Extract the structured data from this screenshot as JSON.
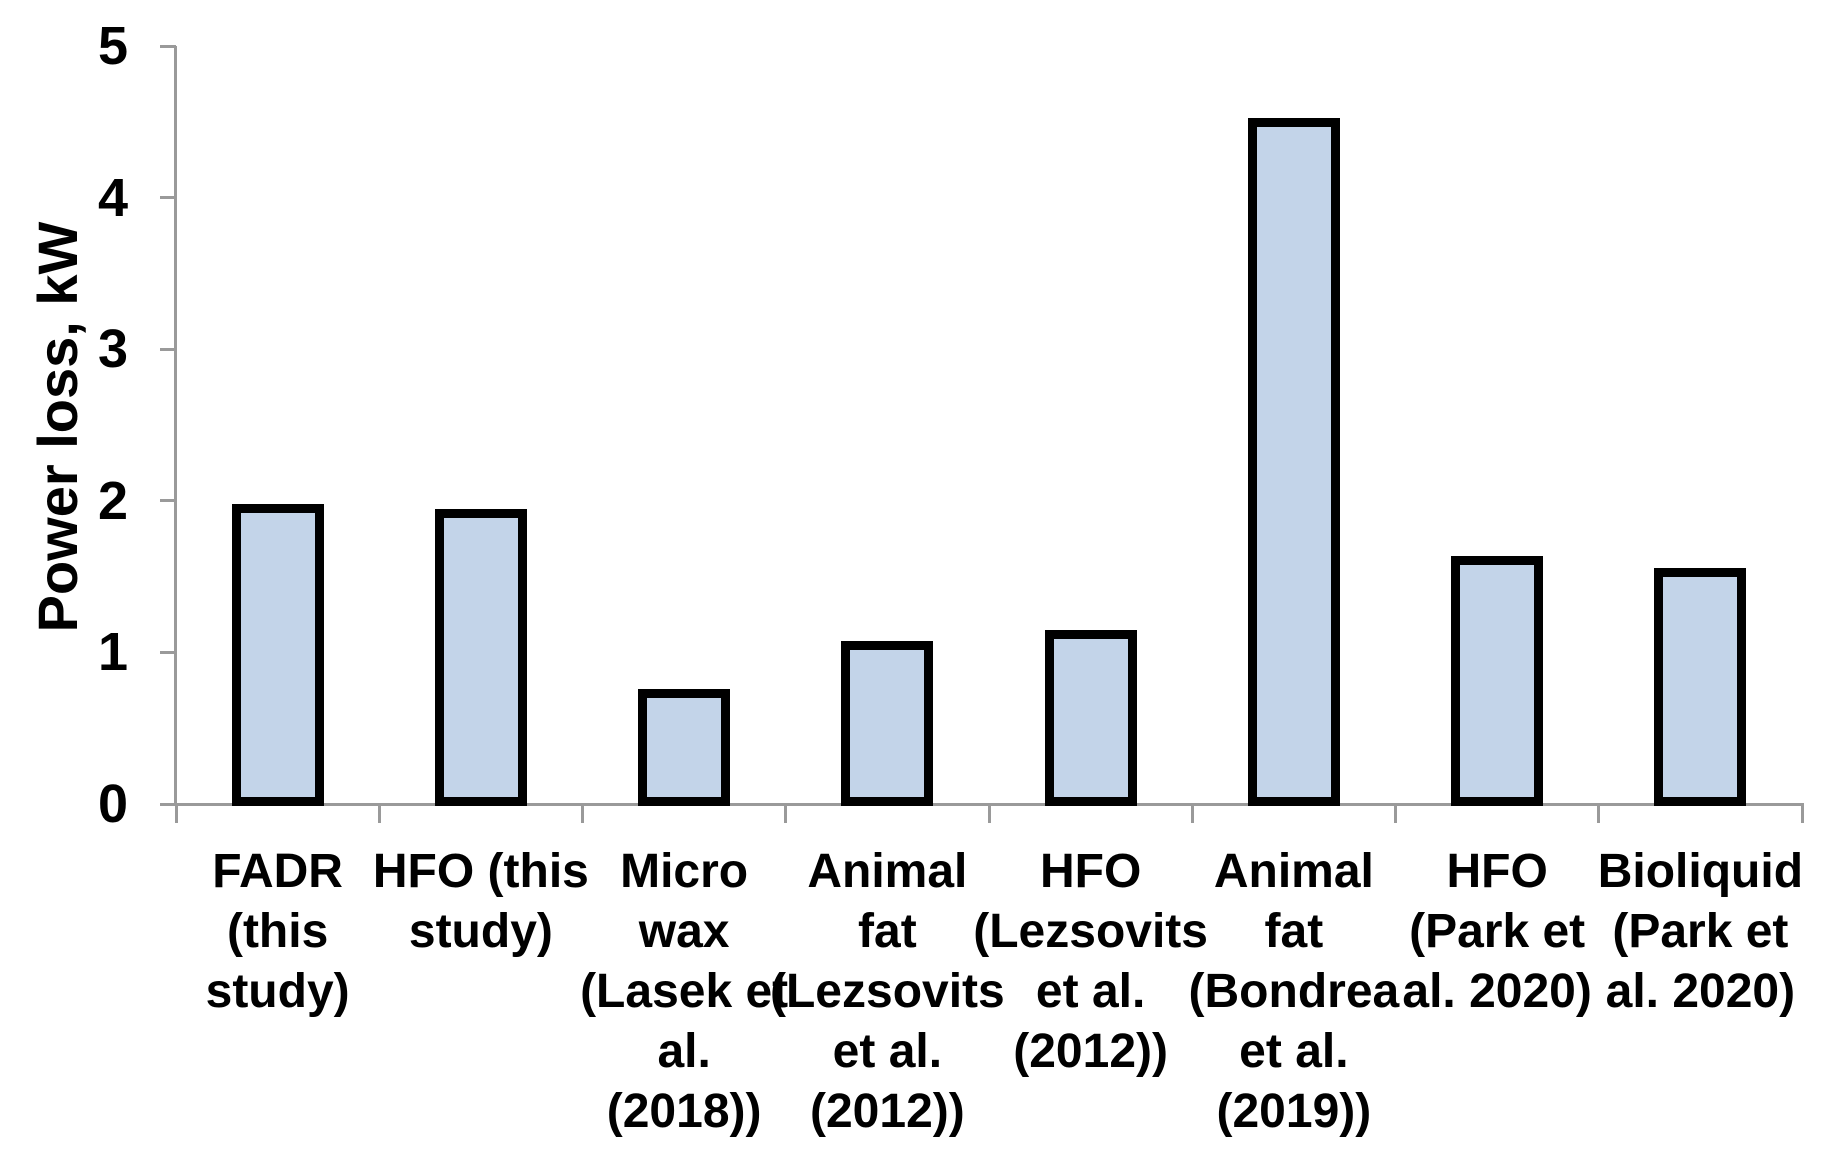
{
  "chart_data": {
    "type": "bar",
    "title": "",
    "ylabel": "Power loss, kW",
    "xlabel": "",
    "ylim": [
      0,
      5
    ],
    "yticks": [
      "0",
      "1",
      "2",
      "3",
      "4",
      "5"
    ],
    "grid": false,
    "legend_position": "none",
    "categories": [
      "FADR (this study)",
      "HFO (this study)",
      "Micro wax (Lasek et al. (2018))",
      "Animal fat (Lezsovits et al. (2012))",
      "HFO (Lezsovits et al. (2012))",
      "Animal fat (Bondrea et al. (2019))",
      "HFO (Park et al. 2020)",
      "Bioliquid (Park et al. 2020)"
    ],
    "categories_display": [
      "FADR\n(this\nstudy)",
      "HFO (this\nstudy)",
      "Micro\nwax\n(Lasek et\nal.\n(2018))",
      "Animal\nfat\n(Lezsovits\net al.\n(2012))",
      "HFO\n(Lezsovits\net al.\n(2012))",
      "Animal\nfat\n(Bondrea\net al.\n(2019))",
      "HFO\n(Park et\nal. 2020)",
      "Bioliquid\n(Park et\nal. 2020)"
    ],
    "values": [
      1.95,
      1.92,
      0.73,
      1.05,
      1.12,
      4.5,
      1.61,
      1.53
    ],
    "colors": {
      "bar_fill": "#c3d4e9",
      "bar_border": "#000000",
      "axis": "#9a9a9a",
      "text": "#000000",
      "background": "#ffffff"
    }
  }
}
